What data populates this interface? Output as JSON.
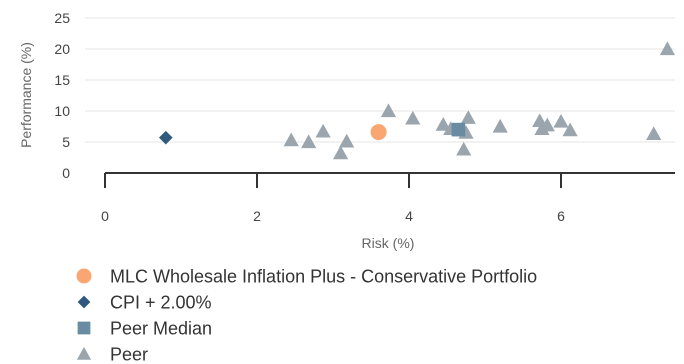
{
  "chart_data": {
    "type": "scatter",
    "title": "",
    "xlabel": "Risk (%)",
    "ylabel": "Performance (%)",
    "xlim": [
      0,
      7.5
    ],
    "ylim": [
      0,
      25
    ],
    "x_ticks": [
      "0",
      "2",
      "4",
      "6"
    ],
    "y_ticks": [
      "0",
      "5",
      "10",
      "15",
      "20",
      "25"
    ],
    "grid": "horizontal",
    "legend_position": "bottom-left",
    "series": [
      {
        "name": "MLC Wholesale Inflation Plus - Conservative Portfolio",
        "marker": "circle",
        "color": "#f9a673",
        "points": [
          {
            "x": 3.6,
            "y": 6.6
          }
        ]
      },
      {
        "name": "CPI + 2.00%",
        "marker": "diamond",
        "color": "#2f5a7d",
        "points": [
          {
            "x": 0.8,
            "y": 5.7
          }
        ]
      },
      {
        "name": "Peer Median",
        "marker": "square",
        "color": "#6a8ca3",
        "points": [
          {
            "x": 4.65,
            "y": 7.0
          }
        ]
      },
      {
        "name": "Peer",
        "marker": "triangle",
        "color": "#9aa5ad",
        "points": [
          {
            "x": 2.45,
            "y": 5.3
          },
          {
            "x": 2.68,
            "y": 5.0
          },
          {
            "x": 2.87,
            "y": 6.7
          },
          {
            "x": 3.1,
            "y": 3.2
          },
          {
            "x": 3.18,
            "y": 5.1
          },
          {
            "x": 3.73,
            "y": 10.0
          },
          {
            "x": 4.05,
            "y": 8.8
          },
          {
            "x": 4.45,
            "y": 7.8
          },
          {
            "x": 4.55,
            "y": 7.1
          },
          {
            "x": 4.68,
            "y": 6.9
          },
          {
            "x": 4.72,
            "y": 3.8
          },
          {
            "x": 4.75,
            "y": 6.5
          },
          {
            "x": 4.78,
            "y": 8.9
          },
          {
            "x": 5.2,
            "y": 7.5
          },
          {
            "x": 5.72,
            "y": 8.4
          },
          {
            "x": 5.75,
            "y": 7.1
          },
          {
            "x": 5.82,
            "y": 7.7
          },
          {
            "x": 6.0,
            "y": 8.3
          },
          {
            "x": 6.12,
            "y": 6.9
          },
          {
            "x": 7.22,
            "y": 6.3
          },
          {
            "x": 7.4,
            "y": 20.0
          }
        ]
      }
    ]
  }
}
